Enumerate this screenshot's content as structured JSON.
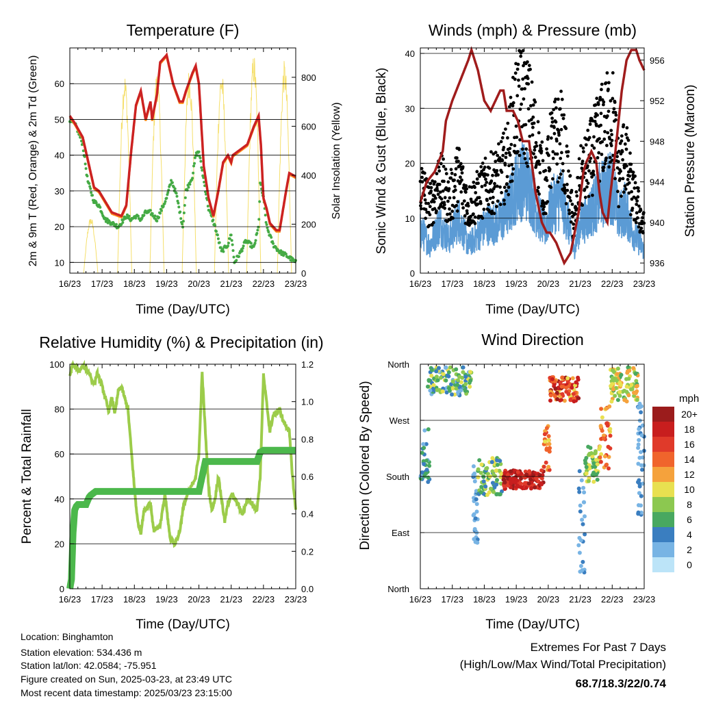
{
  "colors": {
    "temp_red": "#cc2222",
    "temp_orange": "#ff8c1a",
    "dewpoint_green": "#44aa44",
    "solar_yellow": "#f5df6b",
    "wind_blue": "#5b9bd5",
    "gust_black": "#000000",
    "pressure_maroon": "#a01c1c",
    "rh_green": "#9ccc4a",
    "precip_green": "#4cb84c",
    "extremes_red": "#cc2222"
  },
  "info": {
    "location": "Location: Binghamton",
    "elevation": "Station elevation: 534.436 m",
    "latlon": "Station lat/lon: 42.0584; -75.951",
    "created": "Figure created on Sun, 2025-03-23, at 23:49 UTC",
    "timestamp": "Most recent data timestamp: 2025/03/23 23:15:00"
  },
  "extremes": {
    "title": "Extremes For Past 7 Days",
    "subtitle": "(High/Low/Max Wind/Total Precipitation)",
    "values": "68.7/18.3/22/0.74"
  },
  "speed_legend": {
    "unit": "mph",
    "labels": [
      "20+",
      "18",
      "16",
      "14",
      "12",
      "10",
      "8",
      "6",
      "4",
      "2",
      "0"
    ],
    "colors": [
      "#9b1c1c",
      "#c81e1e",
      "#e03a2a",
      "#f0642c",
      "#f5a23c",
      "#e8e050",
      "#8cc850",
      "#48a860",
      "#3a7ec0",
      "#78b4e4",
      "#bce4f8"
    ]
  },
  "chart_data": [
    {
      "type": "line",
      "title": "Temperature (F)",
      "xlabel": "Time (Day/UTC)",
      "ylabel": "2m & 9m T (Red, Orange) & 2m Td (Green)",
      "y2label": "Solar Insolation (Yellow)",
      "x_ticks": [
        "16/23",
        "17/23",
        "18/23",
        "19/23",
        "20/23",
        "21/23",
        "22/23",
        "23/23"
      ],
      "ylim": [
        7,
        70
      ],
      "y_ticks": [
        10,
        20,
        30,
        40,
        50,
        60
      ],
      "y2lim": [
        0,
        920
      ],
      "y2_ticks": [
        0,
        200,
        400,
        600,
        800
      ],
      "series": [
        {
          "name": "2m T",
          "x": [
            0,
            0.15,
            0.4,
            0.6,
            0.75,
            0.9,
            1.1,
            1.3,
            1.6,
            1.75,
            1.9,
            2.05,
            2.2,
            2.35,
            2.5,
            2.55,
            2.7,
            2.8,
            3.0,
            3.2,
            3.4,
            3.5,
            3.6,
            3.8,
            3.9,
            4.0,
            4.15,
            4.3,
            4.45,
            4.6,
            4.75,
            4.9,
            5.0,
            5.05,
            5.2,
            5.5,
            5.7,
            5.85,
            5.92,
            6.0,
            6.1,
            6.2,
            6.4,
            6.5,
            6.7,
            6.8,
            7.0
          ],
          "values": [
            51,
            49,
            45,
            37,
            31,
            30,
            27,
            24,
            23,
            26,
            41,
            54,
            58,
            50,
            55,
            50,
            57,
            66,
            68,
            60,
            55,
            55,
            58,
            63,
            65,
            60,
            37,
            28,
            23,
            30,
            38,
            40,
            38,
            40,
            41,
            43,
            48,
            51,
            43,
            28,
            25,
            21,
            19,
            19,
            30,
            35,
            34
          ]
        },
        {
          "name": "2m Td",
          "x": [
            0,
            0.2,
            0.4,
            0.55,
            0.75,
            0.9,
            1.1,
            1.3,
            1.5,
            1.75,
            1.9,
            2.05,
            2.2,
            2.35,
            2.5,
            2.7,
            2.85,
            3.0,
            3.15,
            3.3,
            3.5,
            3.6,
            3.8,
            3.9,
            4.0,
            4.15,
            4.3,
            4.5,
            4.7,
            4.9,
            5.0,
            5.1,
            5.3,
            5.45,
            5.6,
            5.7,
            5.85,
            5.9,
            6.0,
            6.1,
            6.3,
            6.5,
            6.7,
            6.85,
            7.0
          ],
          "values": [
            50,
            48,
            43,
            33,
            27,
            26,
            22,
            21,
            20,
            23,
            22,
            23,
            22,
            24,
            24,
            22,
            25,
            28,
            33,
            29,
            20,
            30,
            34,
            40,
            41,
            33,
            25,
            20,
            13,
            15,
            18,
            10,
            13,
            16,
            15,
            14,
            20,
            32,
            28,
            20,
            15,
            13,
            12,
            11,
            10
          ]
        },
        {
          "name": "Solar Insolation",
          "axis": "y2",
          "day_peaks": [
            {
              "center": 0.65,
              "peak": 230
            },
            {
              "center": 1.7,
              "peak": 820
            },
            {
              "center": 2.7,
              "peak": 830
            },
            {
              "center": 3.7,
              "peak": 840
            },
            {
              "center": 4.7,
              "peak": 835
            },
            {
              "center": 5.7,
              "peak": 900
            },
            {
              "center": 6.65,
              "peak": 870
            }
          ]
        }
      ]
    },
    {
      "type": "line",
      "title": "Winds (mph) & Pressure (mb)",
      "xlabel": "Time (Day/UTC)",
      "ylabel": "Sonic Wind & Gust (Blue, Black)",
      "y2label": "Station Pressure (Maroon)",
      "x_ticks": [
        "16/23",
        "17/23",
        "18/23",
        "19/23",
        "20/23",
        "21/23",
        "22/23",
        "23/23"
      ],
      "ylim": [
        0,
        41
      ],
      "y_ticks": [
        0,
        10,
        20,
        30,
        40
      ],
      "y2lim": [
        935,
        957.2
      ],
      "y2_ticks": [
        936,
        940,
        944,
        948,
        952,
        956
      ],
      "series": [
        {
          "name": "Wind",
          "x": [
            0,
            0.3,
            0.6,
            0.9,
            1.2,
            1.5,
            1.8,
            2.1,
            2.4,
            2.7,
            3.0,
            3.2,
            3.4,
            3.6,
            3.9,
            4.1,
            4.4,
            4.6,
            4.8,
            5.0,
            5.2,
            5.4,
            5.6,
            5.8,
            6.0,
            6.2,
            6.4,
            6.6,
            6.8,
            7.0
          ],
          "values": [
            8,
            5,
            9,
            6,
            10,
            5,
            7,
            9,
            9,
            11,
            16,
            17,
            16,
            12,
            8,
            12,
            14,
            10,
            4,
            9,
            10,
            12,
            14,
            15,
            16,
            10,
            12,
            8,
            6,
            4
          ]
        },
        {
          "name": "Gust",
          "x": [
            0,
            0.3,
            0.6,
            0.9,
            1.2,
            1.5,
            1.8,
            2.1,
            2.4,
            2.7,
            3.0,
            3.2,
            3.4,
            3.6,
            3.9,
            4.1,
            4.4,
            4.6,
            4.8,
            5.0,
            5.2,
            5.4,
            5.6,
            5.8,
            6.0,
            6.2,
            6.4,
            6.6,
            6.8,
            7.0
          ],
          "values": [
            16,
            12,
            17,
            13,
            18,
            12,
            14,
            16,
            17,
            20,
            30,
            31,
            29,
            24,
            15,
            23,
            25,
            18,
            8,
            17,
            19,
            22,
            25,
            27,
            29,
            18,
            22,
            15,
            12,
            8
          ]
        },
        {
          "name": "Station Pressure",
          "axis": "y2",
          "x": [
            0,
            0.2,
            0.45,
            0.7,
            0.8,
            1.0,
            1.25,
            1.5,
            1.6,
            1.8,
            2.0,
            2.2,
            2.5,
            2.6,
            2.7,
            2.9,
            3.05,
            3.2,
            3.4,
            3.6,
            3.8,
            3.95,
            4.05,
            4.25,
            4.5,
            4.7,
            4.95,
            5.1,
            5.2,
            5.35,
            5.5,
            5.6,
            5.7,
            5.85,
            5.95,
            6.1,
            6.3,
            6.45,
            6.6,
            6.75,
            6.85,
            7.0
          ],
          "values": [
            942,
            944,
            945,
            947,
            950,
            952,
            954,
            956,
            957,
            955,
            952,
            951,
            953,
            953,
            951,
            951,
            950,
            948,
            948,
            943,
            940,
            939,
            939,
            938,
            936,
            937,
            941,
            945,
            946,
            947,
            946,
            943,
            941,
            940,
            943,
            947,
            953,
            956,
            957,
            957,
            956,
            955
          ]
        }
      ]
    },
    {
      "type": "line",
      "title": "Relative Humidity (%) & Precipitation (in)",
      "xlabel": "Time (Day/UTC)",
      "ylabel": "Percent & Total Rainfall",
      "x_ticks": [
        "16/23",
        "17/23",
        "18/23",
        "19/23",
        "20/23",
        "21/23",
        "22/23",
        "23/23"
      ],
      "ylim": [
        0,
        100
      ],
      "y_ticks": [
        0,
        20,
        40,
        60,
        80,
        100
      ],
      "y2lim": [
        0,
        1.2
      ],
      "y2_ticks": [
        "0.0",
        "0.2",
        "0.4",
        "0.6",
        "0.8",
        "1.0",
        "1.2"
      ],
      "series": [
        {
          "name": "Relative Humidity",
          "x": [
            0,
            0.1,
            0.2,
            0.3,
            0.4,
            0.5,
            0.6,
            0.75,
            0.85,
            1.0,
            1.1,
            1.2,
            1.3,
            1.4,
            1.5,
            1.6,
            1.8,
            2.0,
            2.1,
            2.2,
            2.3,
            2.5,
            2.6,
            2.8,
            2.95,
            3.1,
            3.25,
            3.4,
            3.5,
            3.6,
            3.75,
            3.9,
            4.0,
            4.1,
            4.2,
            4.3,
            4.4,
            4.5,
            4.6,
            4.7,
            4.8,
            4.9,
            5.0,
            5.1,
            5.2,
            5.35,
            5.5,
            5.65,
            5.8,
            5.9,
            6.0,
            6.2,
            6.3,
            6.5,
            6.6,
            6.8,
            6.9,
            7.0
          ],
          "values": [
            95,
            100,
            98,
            97,
            99,
            98,
            96,
            91,
            96,
            90,
            85,
            79,
            85,
            78,
            88,
            90,
            80,
            45,
            30,
            25,
            35,
            38,
            26,
            28,
            42,
            23,
            20,
            25,
            35,
            40,
            45,
            50,
            60,
            96,
            70,
            45,
            35,
            40,
            50,
            40,
            30,
            38,
            42,
            40,
            38,
            33,
            40,
            38,
            35,
            50,
            95,
            70,
            77,
            80,
            75,
            70,
            50,
            35
          ]
        },
        {
          "name": "Total Precipitation",
          "axis": "y2",
          "x": [
            0,
            0.05,
            0.1,
            0.15,
            0.2,
            0.25,
            0.5,
            0.55,
            0.6,
            0.65,
            0.8,
            4.0,
            4.1,
            4.2,
            4.4,
            5.8,
            5.9,
            6.0,
            7.0
          ],
          "values": [
            0.0,
            0.05,
            0.3,
            0.42,
            0.44,
            0.45,
            0.45,
            0.47,
            0.49,
            0.5,
            0.52,
            0.52,
            0.6,
            0.68,
            0.68,
            0.68,
            0.73,
            0.74,
            0.74
          ]
        }
      ]
    },
    {
      "type": "scatter",
      "title": "Wind Direction",
      "xlabel": "Time (Day/UTC)",
      "ylabel": "Direction (Colored By Speed)",
      "x_ticks": [
        "16/23",
        "17/23",
        "18/23",
        "19/23",
        "20/23",
        "21/23",
        "22/23",
        "23/23"
      ],
      "y_ticks": [
        "North",
        "East",
        "South",
        "West",
        "North"
      ],
      "ylim": [
        0,
        360
      ],
      "clusters": [
        {
          "x": [
            0.2,
            1.6
          ],
          "dir": [
            310,
            355
          ],
          "speed": [
            2,
            10
          ],
          "n": 120
        },
        {
          "x": [
            0.0,
            0.3
          ],
          "dir": [
            170,
            260
          ],
          "speed": [
            2,
            7
          ],
          "n": 30
        },
        {
          "x": [
            1.65,
            1.8
          ],
          "dir": [
            60,
            200
          ],
          "speed": [
            1,
            4
          ],
          "n": 30
        },
        {
          "x": [
            1.8,
            2.55
          ],
          "dir": [
            150,
            210
          ],
          "speed": [
            4,
            10
          ],
          "n": 80
        },
        {
          "x": [
            2.6,
            3.85
          ],
          "dir": [
            160,
            190
          ],
          "speed": [
            15,
            21
          ],
          "n": 140
        },
        {
          "x": [
            3.85,
            4.05
          ],
          "dir": [
            190,
            270
          ],
          "speed": [
            10,
            16
          ],
          "n": 25
        },
        {
          "x": [
            4.05,
            4.95
          ],
          "dir": [
            300,
            340
          ],
          "speed": [
            10,
            20
          ],
          "n": 100
        },
        {
          "x": [
            4.95,
            5.15
          ],
          "dir": [
            20,
            200
          ],
          "speed": [
            1,
            4
          ],
          "n": 25
        },
        {
          "x": [
            5.15,
            5.6
          ],
          "dir": [
            170,
            230
          ],
          "speed": [
            5,
            11
          ],
          "n": 50
        },
        {
          "x": [
            5.6,
            5.95
          ],
          "dir": [
            190,
            300
          ],
          "speed": [
            10,
            17
          ],
          "n": 40
        },
        {
          "x": [
            5.95,
            6.8
          ],
          "dir": [
            300,
            355
          ],
          "speed": [
            6,
            13
          ],
          "n": 90
        },
        {
          "x": [
            6.8,
            7.0
          ],
          "dir": [
            100,
            300
          ],
          "speed": [
            1,
            5
          ],
          "n": 40
        }
      ]
    }
  ]
}
